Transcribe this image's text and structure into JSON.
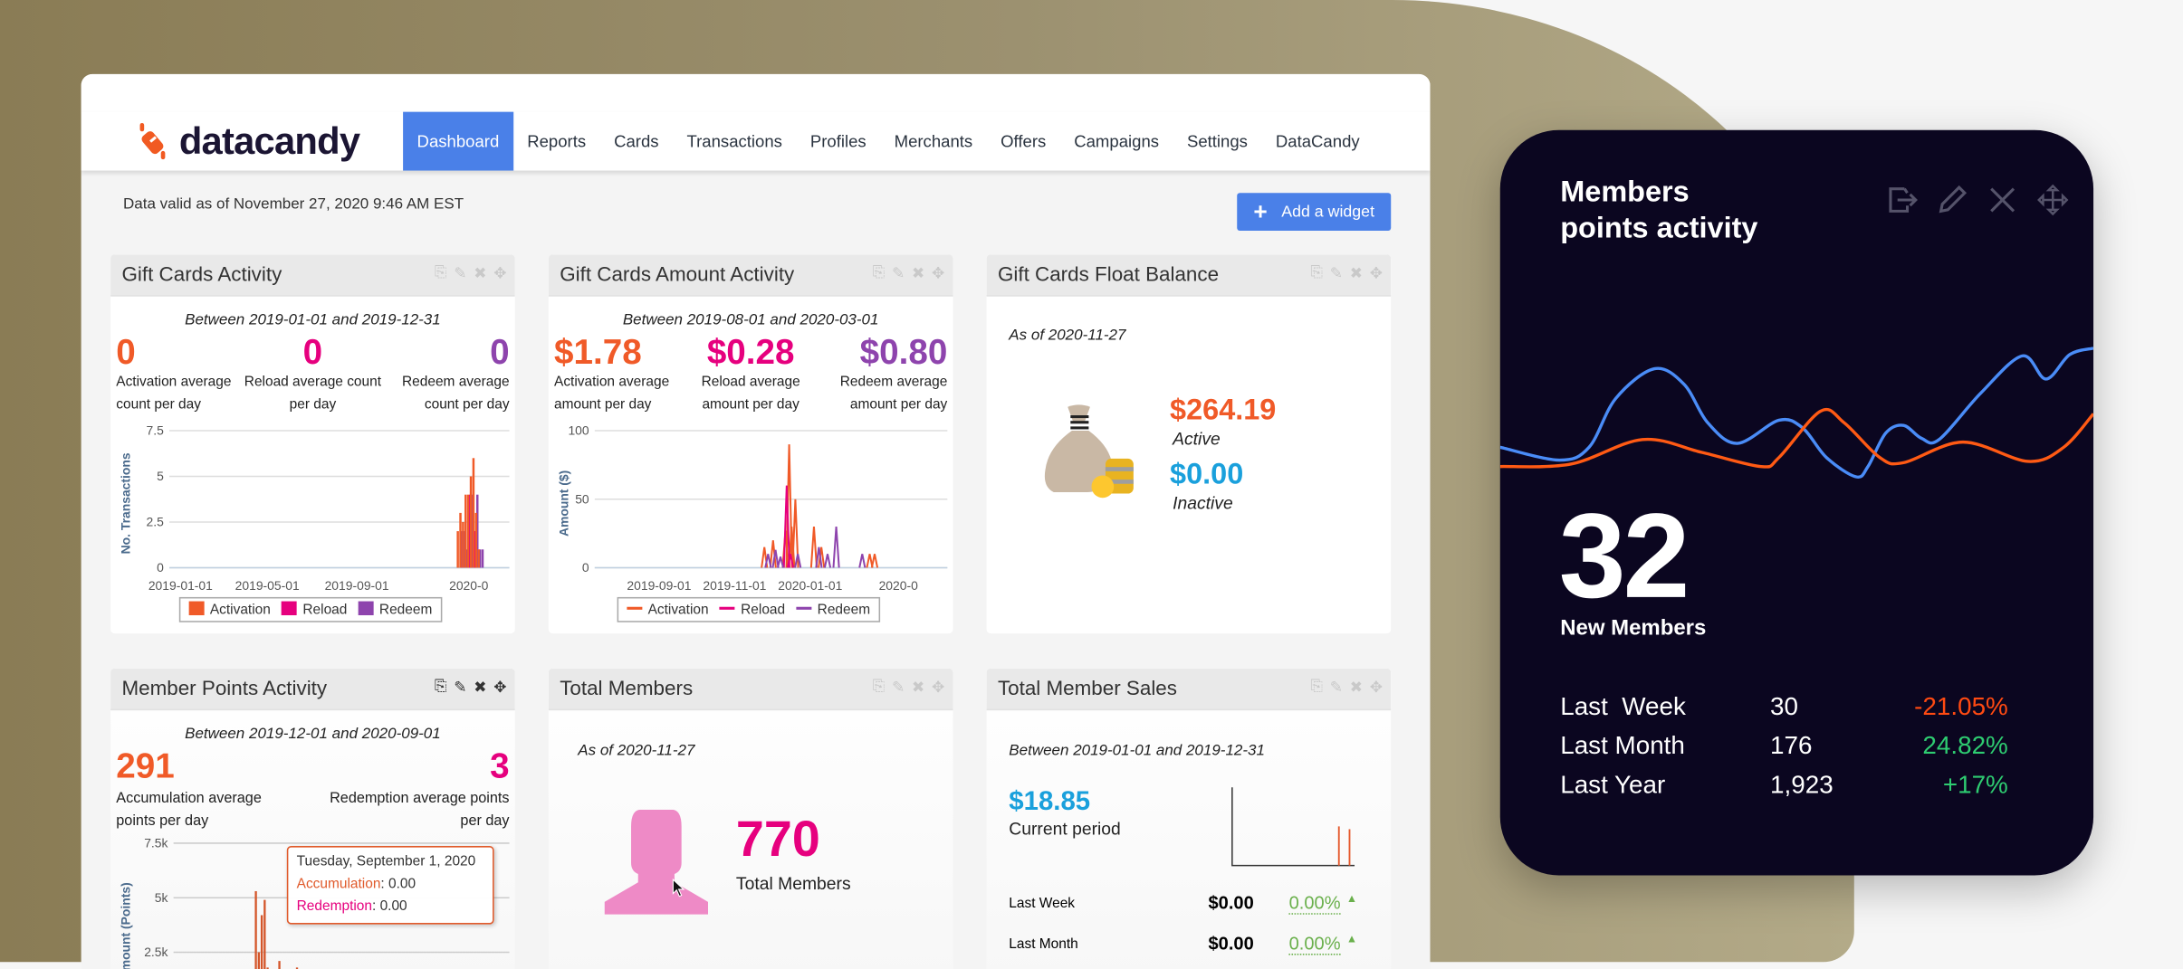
{
  "colors": {
    "accent": "#4a80e8",
    "activation": "#f05a28",
    "reload": "#e6007e",
    "redeem": "#8e44ad",
    "blue_value": "#1aa0dc",
    "positive": "#2ecc71",
    "negative": "#ff4a12",
    "card_bg": "#0b0620"
  },
  "logo": {
    "text": "datacandy"
  },
  "nav": {
    "items": [
      {
        "label": "Dashboard",
        "active": true
      },
      {
        "label": "Reports"
      },
      {
        "label": "Cards"
      },
      {
        "label": "Transactions"
      },
      {
        "label": "Profiles"
      },
      {
        "label": "Merchants"
      },
      {
        "label": "Offers"
      },
      {
        "label": "Campaigns"
      },
      {
        "label": "Settings"
      },
      {
        "label": "DataCandy"
      }
    ]
  },
  "toolbar": {
    "valid_text": "Data valid as of November 27, 2020 9:46 AM EST",
    "add_widget_label": "Add a widget"
  },
  "widget_icons": [
    "export-icon",
    "pencil-icon",
    "close-icon",
    "move-icon"
  ],
  "widgets": {
    "gift_cards_activity": {
      "title": "Gift Cards Activity",
      "subtitle": "Between 2019-01-01 and 2019-12-31",
      "stats": [
        {
          "value": "0",
          "label1": "Activation average",
          "label2": "count per day"
        },
        {
          "value": "0",
          "label1": "Reload average count",
          "label2": "per day"
        },
        {
          "value": "0",
          "label1": "Redeem average",
          "label2": "count per day"
        }
      ],
      "legend": [
        "Activation",
        "Reload",
        "Redeem"
      ]
    },
    "gift_cards_amount": {
      "title": "Gift Cards Amount Activity",
      "subtitle": "Between 2019-08-01 and 2020-03-01",
      "stats": [
        {
          "value": "$1.78",
          "label1": "Activation average",
          "label2": "amount per day"
        },
        {
          "value": "$0.28",
          "label1": "Reload average",
          "label2": "amount per day"
        },
        {
          "value": "$0.80",
          "label1": "Redeem average",
          "label2": "amount per day"
        }
      ],
      "legend": [
        "Activation",
        "Reload",
        "Redeem"
      ]
    },
    "float_balance": {
      "title": "Gift Cards Float Balance",
      "subtitle": "As of 2020-11-27",
      "active_value": "$264.19",
      "active_label": "Active",
      "inactive_value": "$0.00",
      "inactive_label": "Inactive"
    },
    "member_points": {
      "title": "Member Points Activity",
      "subtitle": "Between 2019-12-01 and 2020-09-01",
      "stats": [
        {
          "value": "291",
          "label1": "Accumulation average",
          "label2": "points per day"
        },
        {
          "value": "3",
          "label1": "Redemption average points",
          "label2": "per day"
        }
      ],
      "tooltip": {
        "date": "Tuesday, September 1, 2020",
        "acc_label": "Accumulation",
        "acc_value": ": 0.00",
        "red_label": "Redemption",
        "red_value": ": 0.00"
      }
    },
    "total_members": {
      "title": "Total Members",
      "subtitle": "As of 2020-11-27",
      "value": "770",
      "label": "Total Members"
    },
    "member_sales": {
      "title": "Total Member Sales",
      "subtitle": "Between 2019-01-01 and 2019-12-31",
      "value": "$18.85",
      "label": "Current period",
      "rows": [
        {
          "label": "Last Week",
          "value": "$0.00",
          "pct": "0.00%"
        },
        {
          "label": "Last Month",
          "value": "$0.00",
          "pct": "0.00%"
        }
      ]
    }
  },
  "dark_card": {
    "title_line1": "Members",
    "title_line2": "points activity",
    "value": "32",
    "value_label": "New Members",
    "rows": [
      {
        "label": "Last  Week",
        "value": "30",
        "pct": "-21.05%",
        "trend": "negative"
      },
      {
        "label": "Last Month",
        "value": "176",
        "pct": "24.82%",
        "trend": "positive"
      },
      {
        "label": "Last Year",
        "value": "1,923",
        "pct": "+17%",
        "trend": "positive"
      }
    ]
  },
  "chart_data": [
    {
      "id": "gift_cards_activity",
      "type": "bar",
      "ylabel": "No. Transactions",
      "ylim": [
        0,
        7.5
      ],
      "yticks": [
        "0",
        "2.5",
        "5",
        "7.5"
      ],
      "xticks": [
        "2019-01-01",
        "2019-05-01",
        "2019-09-01",
        "2020-0"
      ],
      "grid": true,
      "legend_placement": "bottom",
      "x": [
        "2019-12-01",
        "2019-12-04",
        "2019-12-07",
        "2019-12-10",
        "2019-12-13",
        "2019-12-16",
        "2019-12-19",
        "2019-12-22",
        "2019-12-25"
      ],
      "series": [
        {
          "name": "Activation",
          "values": [
            2,
            3,
            2.5,
            4,
            4,
            5,
            6,
            3,
            1
          ]
        },
        {
          "name": "Reload",
          "values": [
            0,
            0,
            0,
            0,
            4,
            0,
            2,
            0,
            0
          ]
        },
        {
          "name": "Redeem",
          "values": [
            2,
            2,
            1,
            3,
            4,
            2,
            4,
            1,
            1
          ]
        }
      ]
    },
    {
      "id": "gift_cards_amount",
      "type": "line",
      "ylabel": "Amount ($)",
      "ylim": [
        0,
        100
      ],
      "yticks": [
        "0",
        "50",
        "100"
      ],
      "xticks": [
        "2019-09-01",
        "2019-11-01",
        "2020-01-01",
        "2020-0"
      ],
      "grid": true,
      "legend_placement": "bottom",
      "series": [
        {
          "name": "Activation",
          "points": [
            [
              "2019-11-25",
              15
            ],
            [
              "2019-12-02",
              20
            ],
            [
              "2019-12-12",
              27
            ],
            [
              "2019-12-15",
              90
            ],
            [
              "2019-12-17",
              30
            ],
            [
              "2019-12-20",
              50
            ],
            [
              "2020-01-04",
              30
            ],
            [
              "2020-01-10",
              15
            ],
            [
              "2020-02-18",
              10
            ],
            [
              "2020-02-22",
              10
            ]
          ]
        },
        {
          "name": "Reload",
          "points": [
            [
              "2019-12-13",
              60
            ],
            [
              "2019-12-16",
              10
            ]
          ]
        },
        {
          "name": "Redeem",
          "points": [
            [
              "2019-11-28",
              10
            ],
            [
              "2019-12-04",
              13
            ],
            [
              "2019-12-08",
              8
            ],
            [
              "2019-12-22",
              10
            ],
            [
              "2020-01-08",
              15
            ],
            [
              "2020-01-15",
              10
            ],
            [
              "2020-01-22",
              30
            ],
            [
              "2020-02-12",
              10
            ]
          ]
        }
      ]
    },
    {
      "id": "member_points",
      "type": "bar",
      "ylabel": "Amount (Points)",
      "ylim": [
        0,
        7500
      ],
      "yticks": [
        "2.5k",
        "5k",
        "7.5k"
      ],
      "grid": true,
      "series": [
        {
          "name": "Accumulation",
          "values": [
            1200,
            5300,
            2500,
            4200,
            4900,
            1800,
            1200,
            900,
            1600,
            2100,
            1100,
            1700,
            900,
            1400,
            1000,
            1800,
            800,
            1300
          ]
        }
      ]
    },
    {
      "id": "member_sales",
      "type": "bar",
      "series": [
        {
          "values": [
            0,
            0,
            0,
            0,
            0,
            0,
            0,
            0,
            0,
            0,
            0,
            0,
            0,
            0,
            0,
            0,
            0,
            0,
            0,
            28,
            0,
            26
          ]
        }
      ]
    },
    {
      "id": "dark_card",
      "type": "line",
      "series": [
        {
          "color": "#4a8cf7",
          "points": [
            [
              0,
              23
            ],
            [
              10,
              13
            ],
            [
              15,
              23
            ],
            [
              19.5,
              61
            ],
            [
              26,
              84
            ],
            [
              31,
              72
            ],
            [
              35,
              42
            ],
            [
              40,
              26
            ],
            [
              47,
              44
            ],
            [
              51,
              38
            ],
            [
              55,
              15
            ],
            [
              60,
              0
            ],
            [
              62,
              8
            ],
            [
              65,
              34
            ],
            [
              68,
              40
            ],
            [
              71,
              30
            ],
            [
              74,
              29
            ],
            [
              81,
              65
            ],
            [
              88,
              94
            ],
            [
              92,
              76
            ],
            [
              96,
              95
            ],
            [
              100,
              100
            ]
          ]
        },
        {
          "color": "#ff5a14",
          "points": [
            [
              0,
              8
            ],
            [
              12,
              10
            ],
            [
              24,
              29
            ],
            [
              34,
              19
            ],
            [
              44,
              8
            ],
            [
              47,
              15
            ],
            [
              54,
              51
            ],
            [
              58,
              42
            ],
            [
              64,
              15
            ],
            [
              68,
              11
            ],
            [
              78,
              27
            ],
            [
              89,
              12
            ],
            [
              95,
              23
            ],
            [
              100,
              49
            ]
          ]
        }
      ]
    }
  ]
}
